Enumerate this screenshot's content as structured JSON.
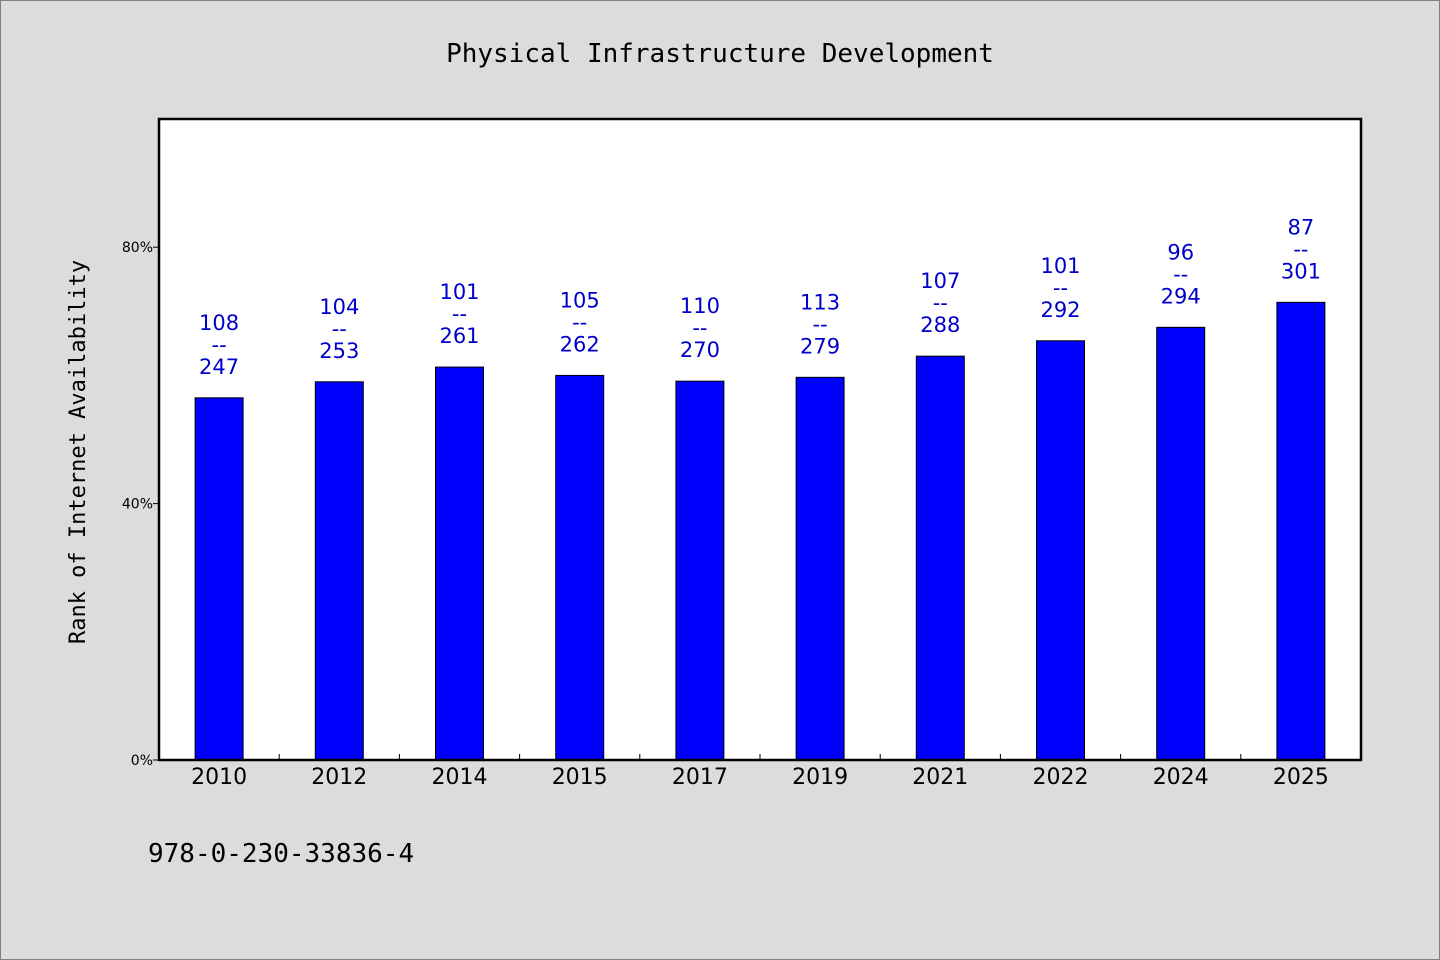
{
  "chart_data": {
    "type": "bar",
    "title": "Physical Infrastructure Development",
    "ylabel": "Rank of Internet Availability",
    "xlabel": "",
    "ylim": [
      0,
      100
    ],
    "yticks": [
      0,
      40,
      80
    ],
    "ytick_labels": [
      "0%",
      "40%",
      "80%"
    ],
    "grid": false,
    "categories": [
      "2010",
      "2012",
      "2014",
      "2015",
      "2017",
      "2019",
      "2021",
      "2022",
      "2024",
      "2025"
    ],
    "values": [
      56.5,
      59,
      61.3,
      60,
      59.1,
      59.7,
      63,
      65.4,
      67.5,
      71.4
    ],
    "label_top": [
      "108",
      "104",
      "101",
      "105",
      "110",
      "113",
      "107",
      "101",
      "96",
      "87"
    ],
    "label_bottom": [
      "247",
      "253",
      "261",
      "262",
      "270",
      "279",
      "288",
      "292",
      "294",
      "301"
    ],
    "label_separator": "--",
    "bar_color": "#0000ff",
    "label_color": "#0000cc",
    "background": "#dcdcdc",
    "plot_background": "#ffffff"
  },
  "footer": {
    "isbn": "978-0-230-33836-4"
  }
}
